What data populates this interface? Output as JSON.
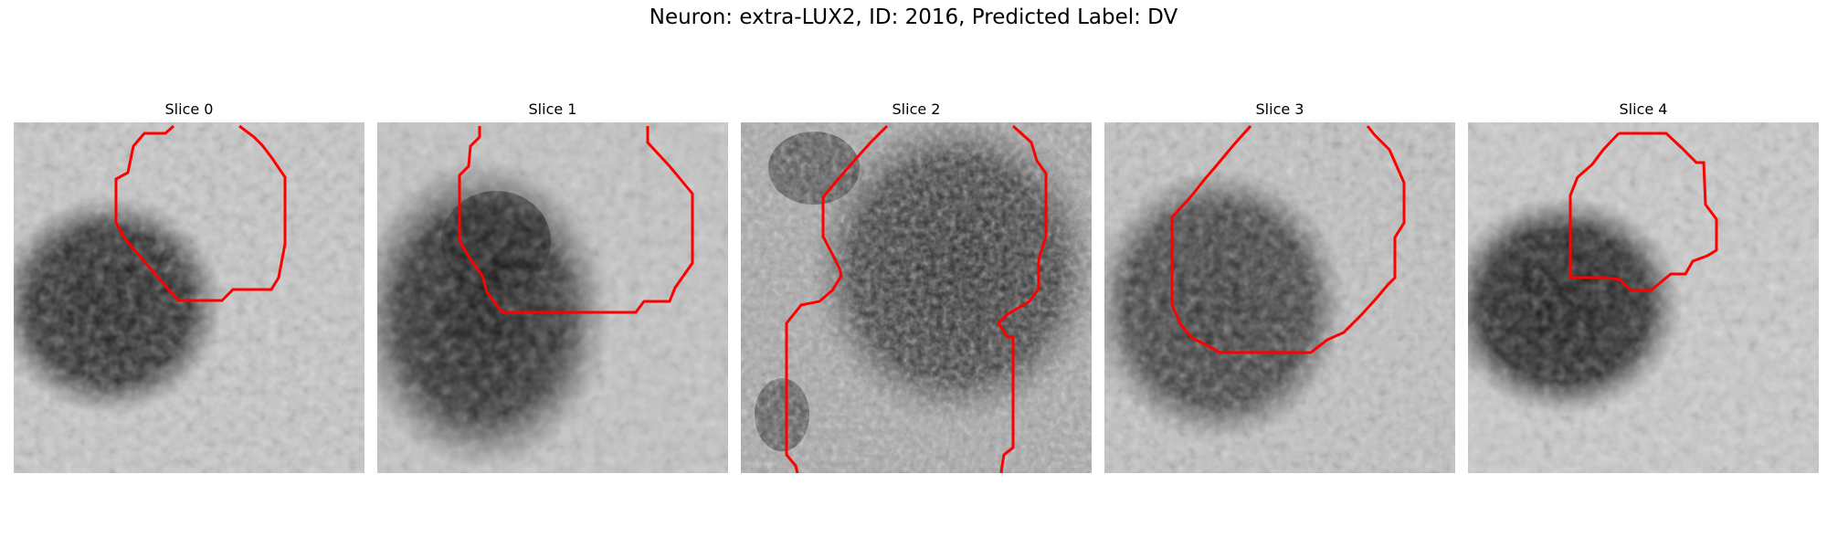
{
  "title": "Neuron: extra-LUX2, ID: 2016, Predicted Label: DV",
  "colors": {
    "contour": "#ff0000",
    "background": "#ffffff"
  },
  "panels": [
    {
      "title": "Slice 0"
    },
    {
      "title": "Slice 1"
    },
    {
      "title": "Slice 2"
    },
    {
      "title": "Slice 3"
    },
    {
      "title": "Slice 4"
    }
  ]
}
